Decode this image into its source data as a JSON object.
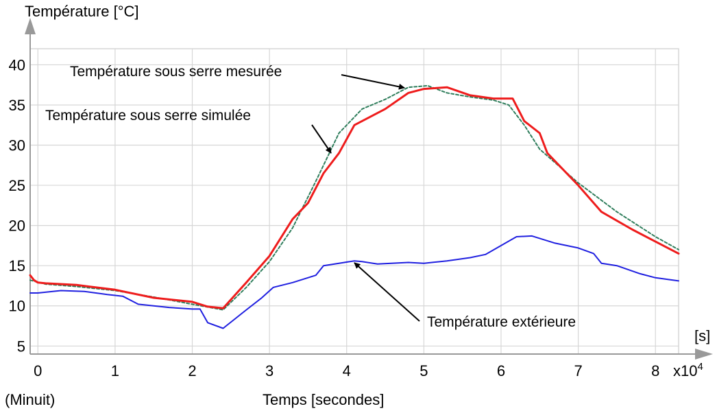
{
  "chart_data": {
    "type": "line",
    "ylabel": "Température [°C]",
    "xlabel": "Temps [secondes]",
    "x_unit": "[s]",
    "x_multiplier": "x10",
    "x_multiplier_exp": "4",
    "x_origin_note": "(Minuit)",
    "xlim": [
      -0.1,
      8.3
    ],
    "ylim": [
      4,
      42
    ],
    "x_ticks": [
      0,
      1,
      2,
      3,
      4,
      5,
      6,
      7,
      8
    ],
    "y_ticks": [
      5,
      10,
      15,
      20,
      25,
      30,
      35,
      40
    ],
    "grid": true,
    "colors": {
      "measured": "#2e7d5b",
      "simulated": "#ee1c1c",
      "outside": "#1f1fe0",
      "grid": "#d6d6d6",
      "axis": "#999999"
    },
    "series": [
      {
        "key": "measured",
        "name": "Température sous serre mesurée",
        "x": [
          -0.1,
          0.1,
          0.5,
          1.0,
          1.5,
          2.0,
          2.4,
          2.7,
          3.0,
          3.3,
          3.6,
          3.9,
          4.2,
          4.5,
          4.8,
          5.05,
          5.3,
          5.6,
          5.9,
          6.1,
          6.3,
          6.5,
          7.0,
          7.5,
          8.0,
          8.3
        ],
        "y": [
          13.2,
          12.7,
          12.4,
          11.9,
          11.1,
          10.2,
          9.5,
          12.3,
          15.5,
          19.7,
          25.5,
          31.5,
          34.5,
          35.7,
          37.2,
          37.4,
          36.5,
          36.0,
          35.6,
          35.0,
          32.5,
          29.5,
          25.3,
          21.7,
          18.6,
          17.0
        ]
      },
      {
        "key": "simulated",
        "name": "Température sous serre simulée",
        "x": [
          -0.1,
          -0.05,
          0.0,
          0.1,
          0.5,
          1.0,
          1.5,
          2.0,
          2.2,
          2.4,
          2.7,
          3.0,
          3.3,
          3.5,
          3.7,
          3.9,
          4.1,
          4.5,
          4.8,
          5.0,
          5.3,
          5.6,
          5.9,
          6.15,
          6.3,
          6.5,
          6.6,
          7.0,
          7.3,
          7.7,
          8.0,
          8.3
        ],
        "y": [
          13.8,
          13.2,
          12.9,
          12.8,
          12.6,
          12.0,
          11.0,
          10.5,
          9.9,
          9.7,
          12.9,
          16.2,
          20.8,
          22.8,
          26.5,
          29.0,
          32.5,
          34.5,
          36.5,
          37.0,
          37.2,
          36.2,
          35.8,
          35.8,
          33.0,
          31.5,
          29.0,
          25.0,
          21.7,
          19.5,
          18.0,
          16.5
        ]
      },
      {
        "key": "outside",
        "name": "Température extérieure",
        "x": [
          -0.1,
          0.0,
          0.3,
          0.6,
          0.9,
          1.1,
          1.3,
          1.5,
          1.7,
          2.0,
          2.1,
          2.2,
          2.4,
          2.7,
          2.9,
          3.05,
          3.3,
          3.6,
          3.7,
          3.9,
          4.1,
          4.2,
          4.4,
          4.8,
          5.0,
          5.3,
          5.6,
          5.8,
          6.0,
          6.2,
          6.4,
          6.5,
          6.7,
          7.0,
          7.2,
          7.3,
          7.5,
          7.8,
          8.0,
          8.3
        ],
        "y": [
          11.6,
          11.6,
          11.9,
          11.8,
          11.4,
          11.2,
          10.2,
          10.0,
          9.8,
          9.6,
          9.6,
          7.9,
          7.2,
          9.5,
          11.0,
          12.3,
          12.9,
          13.8,
          15.0,
          15.3,
          15.6,
          15.5,
          15.2,
          15.4,
          15.3,
          15.6,
          16.0,
          16.4,
          17.5,
          18.6,
          18.7,
          18.4,
          17.8,
          17.2,
          16.5,
          15.3,
          15.0,
          14.0,
          13.5,
          13.1
        ]
      }
    ],
    "annotations": [
      {
        "key": "measured",
        "text": "Température sous serre mesurée"
      },
      {
        "key": "simulated",
        "text": "Température sous serre simulée"
      },
      {
        "key": "outside",
        "text": "Température extérieure"
      }
    ]
  }
}
